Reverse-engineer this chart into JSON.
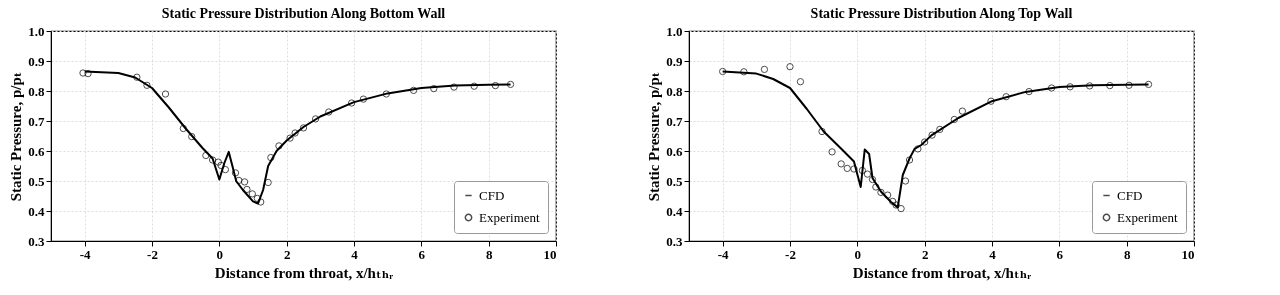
{
  "chart_data": [
    {
      "type": "line",
      "title": "Static Pressure Distribution Along Bottom Wall",
      "xlabel": "Distance from throat, x/hₜₕᵣ",
      "ylabel": "Static Pressure, p/pₜ",
      "xlim": [
        -5,
        10
      ],
      "xticks": [
        -4,
        -2,
        0,
        2,
        4,
        6,
        8,
        10
      ],
      "ylim": [
        0.3,
        1
      ],
      "yticks": [
        0.3,
        0.4,
        0.5,
        0.6,
        0.7,
        0.8,
        0.9,
        {
          "value": 1,
          "label": "1.0"
        }
      ],
      "grid": true,
      "legend": "bottom right",
      "series": [
        {
          "name": "CFD",
          "type": "line",
          "color": "#000000",
          "marker": "none",
          "line_style": "solid",
          "x": [
            -4,
            -3,
            -2.5,
            -2,
            -1.5,
            -1,
            -0.5,
            -0.2,
            0,
            0.15,
            0.28,
            0.4,
            0.5,
            0.7,
            1,
            1.15,
            1.3,
            1.45,
            1.7,
            2,
            2.5,
            3,
            4,
            5,
            6,
            7,
            8,
            8.65
          ],
          "values": [
            0.865,
            0.86,
            0.845,
            0.81,
            0.745,
            0.675,
            0.61,
            0.575,
            0.505,
            0.56,
            0.597,
            0.545,
            0.5,
            0.47,
            0.432,
            0.425,
            0.47,
            0.55,
            0.6,
            0.635,
            0.68,
            0.715,
            0.763,
            0.792,
            0.81,
            0.818,
            0.821,
            0.822
          ]
        },
        {
          "name": "Experiment",
          "type": "scatter",
          "color": "#000000",
          "marker": "circle",
          "x": [
            -4.05,
            -3.9,
            -2.45,
            -2.15,
            -1.6,
            -1.07,
            -0.82,
            -0.4,
            -0.2,
            -0.03,
            0.05,
            0.18,
            0.48,
            0.58,
            0.75,
            0.82,
            0.98,
            1.13,
            1.23,
            1.45,
            1.53,
            1.77,
            2.1,
            2.25,
            2.5,
            2.86,
            3.25,
            3.93,
            4.28,
            4.96,
            5.77,
            6.37,
            6.97,
            7.57,
            8.2,
            8.65
          ],
          "values": [
            0.86,
            0.858,
            0.846,
            0.819,
            0.79,
            0.675,
            0.648,
            0.585,
            0.57,
            0.563,
            0.552,
            0.538,
            0.527,
            0.502,
            0.497,
            0.472,
            0.457,
            0.442,
            0.43,
            0.495,
            0.578,
            0.617,
            0.643,
            0.66,
            0.677,
            0.707,
            0.73,
            0.76,
            0.773,
            0.79,
            0.802,
            0.808,
            0.813,
            0.816,
            0.818,
            0.822
          ]
        }
      ]
    },
    {
      "type": "line",
      "title": "Static Pressure Distribution Along Top Wall",
      "xlabel": "Distance from throat, x/hₜₕᵣ",
      "ylabel": "Static Pressure, p/pₜ",
      "xlim": [
        -5,
        10
      ],
      "xticks": [
        -4,
        -2,
        0,
        2,
        4,
        6,
        8,
        10
      ],
      "ylim": [
        0.3,
        1
      ],
      "yticks": [
        0.3,
        0.4,
        0.5,
        0.6,
        0.7,
        0.8,
        0.9,
        {
          "value": 1,
          "label": "1.0"
        }
      ],
      "grid": true,
      "legend": "bottom right",
      "series": [
        {
          "name": "CFD",
          "type": "line",
          "color": "#000000",
          "marker": "none",
          "line_style": "solid",
          "x": [
            -4,
            -3,
            -2.5,
            -2,
            -1.5,
            -1,
            -0.5,
            -0.1,
            0.1,
            0.22,
            0.35,
            0.45,
            0.7,
            1,
            1.2,
            1.35,
            1.55,
            1.7,
            1.9,
            2.2,
            3,
            4,
            5,
            6,
            7,
            8,
            8.65
          ],
          "values": [
            0.865,
            0.858,
            0.84,
            0.81,
            0.74,
            0.665,
            0.61,
            0.565,
            0.48,
            0.605,
            0.59,
            0.51,
            0.465,
            0.43,
            0.412,
            0.52,
            0.575,
            0.607,
            0.62,
            0.652,
            0.71,
            0.766,
            0.797,
            0.813,
            0.819,
            0.821,
            0.822
          ]
        },
        {
          "name": "Experiment",
          "type": "scatter",
          "color": "#000000",
          "marker": "circle",
          "x": [
            -4,
            -3.37,
            -2.76,
            -2,
            -1.69,
            -1.05,
            -0.75,
            -0.48,
            -0.3,
            -0.1,
            0.15,
            0.3,
            0.45,
            0.55,
            0.7,
            0.9,
            1.05,
            1.15,
            1.3,
            1.43,
            1.55,
            1.8,
            2,
            2.22,
            2.45,
            2.88,
            3.12,
            3.97,
            4.42,
            5.1,
            5.77,
            6.32,
            6.9,
            7.5,
            8.07,
            8.65
          ],
          "values": [
            0.865,
            0.864,
            0.872,
            0.881,
            0.831,
            0.665,
            0.597,
            0.557,
            0.542,
            0.54,
            0.535,
            0.523,
            0.505,
            0.48,
            0.462,
            0.453,
            0.432,
            0.42,
            0.408,
            0.5,
            0.57,
            0.607,
            0.63,
            0.653,
            0.672,
            0.705,
            0.733,
            0.766,
            0.781,
            0.798,
            0.81,
            0.814,
            0.817,
            0.818,
            0.819,
            0.822
          ]
        }
      ]
    }
  ]
}
